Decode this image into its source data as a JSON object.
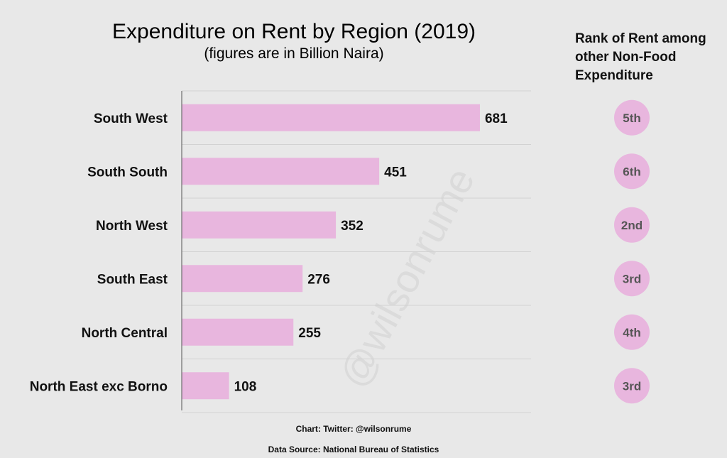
{
  "chart_data": {
    "type": "bar",
    "orientation": "horizontal",
    "title": "Expenditure on Rent by Region (2019)",
    "subtitle": "(figures are in Billion Naira)",
    "categories": [
      "South West",
      "South South",
      "North West",
      "South East",
      "North Central",
      "North East exc Borno"
    ],
    "values": [
      681,
      451,
      352,
      276,
      255,
      108
    ],
    "xlim": [
      0,
      800
    ],
    "grid": true,
    "bar_color": "#e8b6de",
    "rank_header": [
      "Rank of Rent among",
      "other Non-Food",
      "Expenditure"
    ],
    "ranks": [
      "5th",
      "6th",
      "2nd",
      "3rd",
      "4th",
      "3rd"
    ],
    "rank_color": "#e8b6de"
  },
  "footer": {
    "credit": "Chart: Twitter: @wilsonrume",
    "source": "Data Source: National Bureau of Statistics"
  },
  "watermark": "@wilsonrume"
}
